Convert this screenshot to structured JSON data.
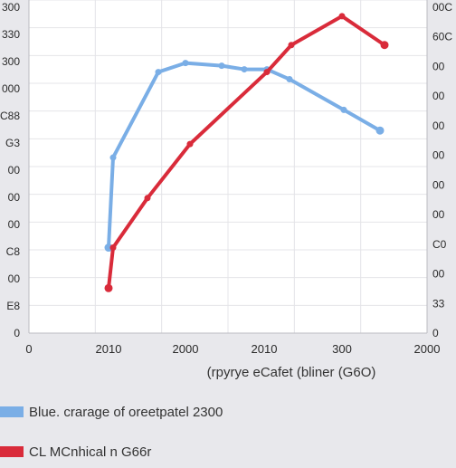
{
  "chart_data": {
    "type": "line",
    "xlabel": "(rpyrye eCafet (bliner (G6O)",
    "left_ticks": [
      "300",
      "330",
      "300",
      "000",
      "C88",
      "G3",
      "00",
      "00",
      "00",
      "C8",
      "00",
      "E8",
      "0"
    ],
    "right_ticks": [
      "00C",
      "60C",
      "00",
      "00",
      "00",
      "00",
      "00",
      "00",
      "C0",
      "00",
      "33",
      "0"
    ],
    "x_ticks": [
      "0",
      "2010",
      "2000",
      "2010",
      "300",
      "2000"
    ],
    "grid": true,
    "series": [
      {
        "name": "Blue. crarage of oreetpatel 2300",
        "color": "#7aaee6",
        "x": [
          120,
          125,
          175,
          205,
          245,
          270,
          295,
          320,
          380,
          420
        ],
        "y": [
          95,
          195,
          290,
          300,
          297,
          293,
          293,
          282,
          248,
          225
        ]
      },
      {
        "name": "CL MCnhical n G66r",
        "color": "#d92b3a",
        "x": [
          120,
          125,
          163,
          210,
          295,
          322,
          378,
          425
        ],
        "y": [
          50,
          95,
          150,
          210,
          290,
          320,
          352,
          320
        ]
      }
    ],
    "xlim": [
      0,
      504
    ],
    "ylim": [
      0,
      370
    ]
  }
}
